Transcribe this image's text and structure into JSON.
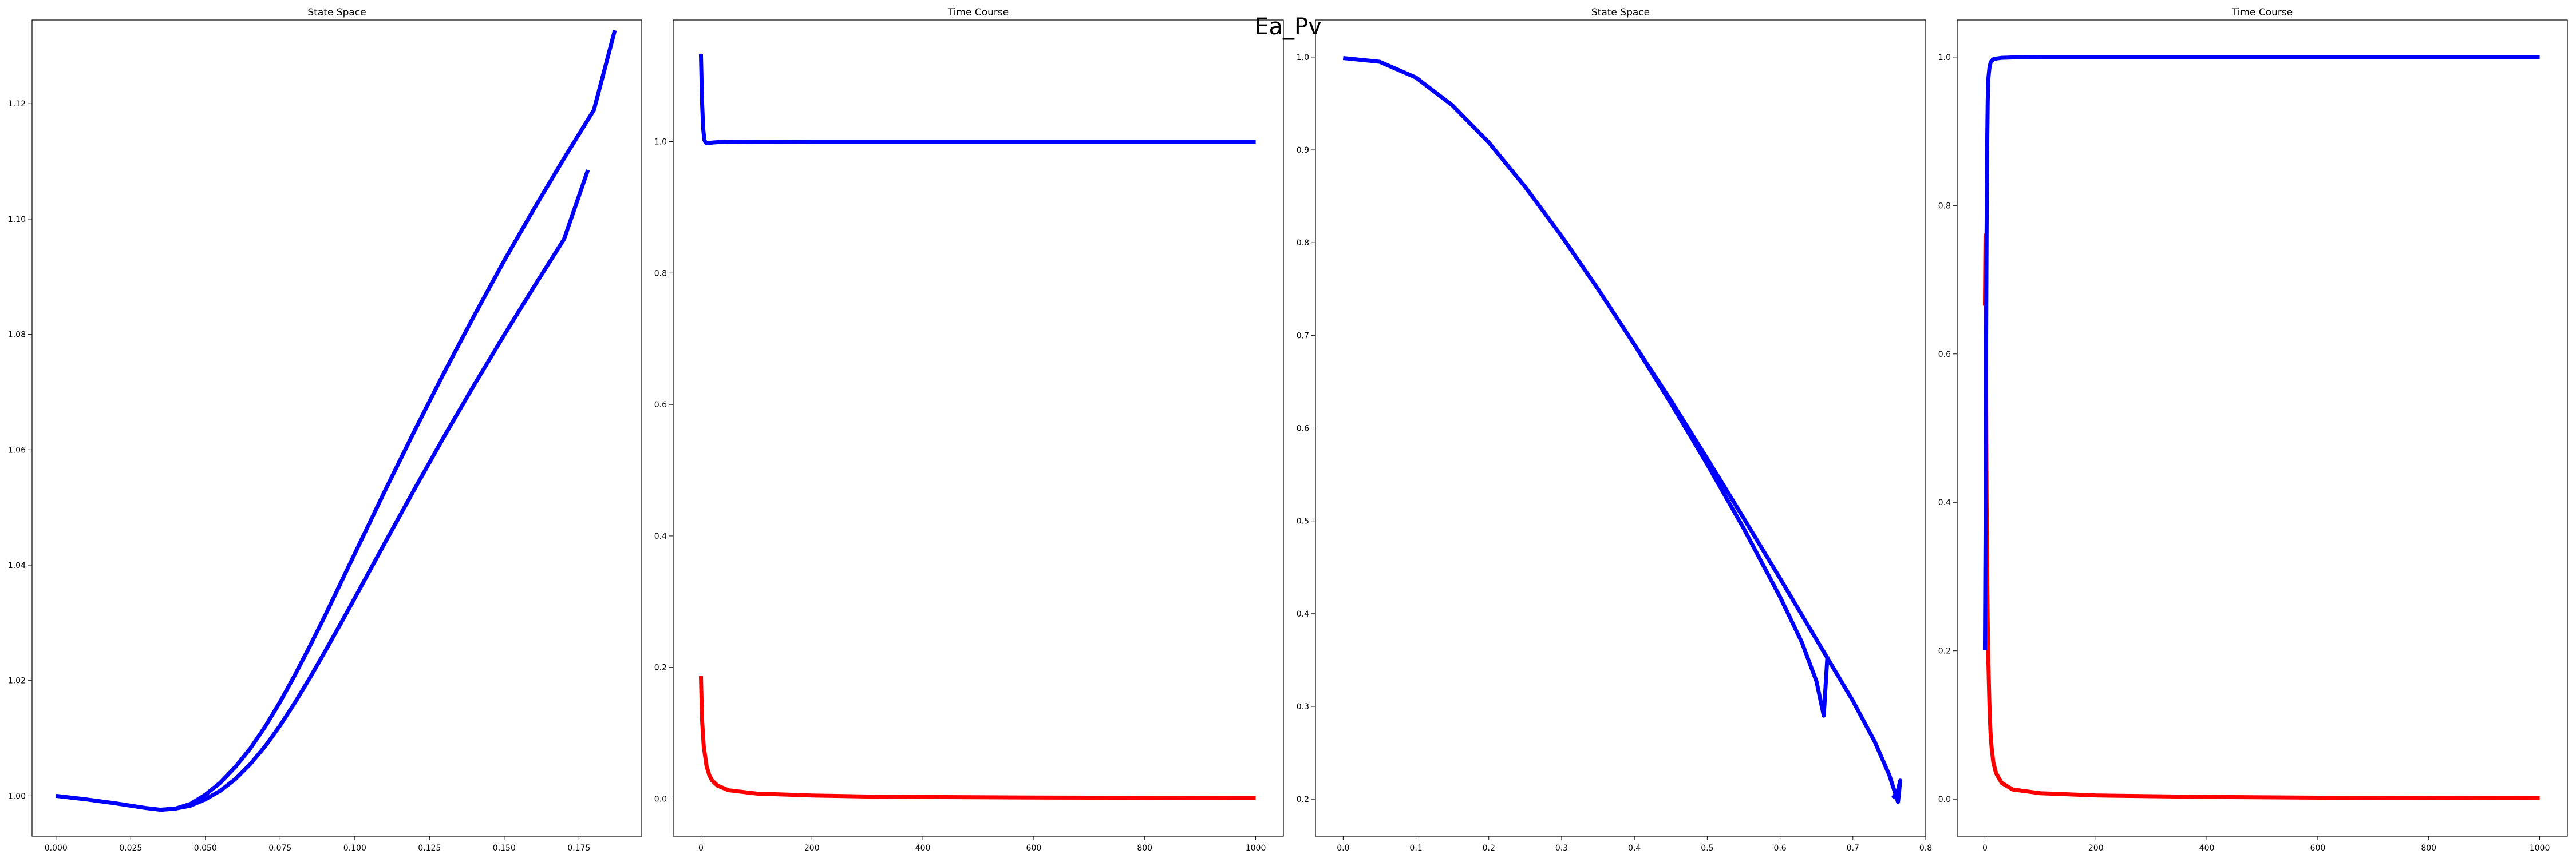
{
  "figure": {
    "suptitle": "Ea_Pv"
  },
  "chart_data": [
    {
      "type": "line",
      "title": "State Space",
      "xlim": [
        -0.008,
        0.196
      ],
      "ylim": [
        0.993,
        1.1345
      ],
      "xticks": [
        0.0,
        0.025,
        0.05,
        0.075,
        0.1,
        0.125,
        0.15,
        0.175
      ],
      "xtick_labels": [
        "0.000",
        "0.025",
        "0.050",
        "0.075",
        "0.100",
        "0.125",
        "0.150",
        "0.175"
      ],
      "yticks": [
        1.0,
        1.02,
        1.04,
        1.06,
        1.08,
        1.1,
        1.12
      ],
      "ytick_labels": [
        "1.00",
        "1.02",
        "1.04",
        "1.06",
        "1.08",
        "1.10",
        "1.12"
      ],
      "series": [
        {
          "color": "#0000ff",
          "x": [
            0.0,
            0.01,
            0.02,
            0.03,
            0.035,
            0.04,
            0.045,
            0.05,
            0.055,
            0.06,
            0.065,
            0.07,
            0.075,
            0.08,
            0.085,
            0.09,
            0.095,
            0.1,
            0.11,
            0.12,
            0.13,
            0.14,
            0.15,
            0.16,
            0.17,
            0.18,
            0.187
          ],
          "y": [
            1.0,
            0.9994,
            0.9987,
            0.9979,
            0.9976,
            0.9978,
            0.9986,
            1.0002,
            1.0023,
            1.005,
            1.0082,
            1.012,
            1.0163,
            1.021,
            1.026,
            1.0312,
            1.0366,
            1.042,
            1.0528,
            1.0633,
            1.0735,
            1.0833,
            1.0928,
            1.1018,
            1.1105,
            1.1189,
            1.1327
          ]
        },
        {
          "color": "#0000ff",
          "x": [
            0.035,
            0.04,
            0.045,
            0.05,
            0.055,
            0.06,
            0.065,
            0.07,
            0.075,
            0.08,
            0.085,
            0.09,
            0.095,
            0.1,
            0.11,
            0.12,
            0.13,
            0.14,
            0.15,
            0.16,
            0.17,
            0.178
          ],
          "y": [
            0.9976,
            0.9978,
            0.9983,
            0.9994,
            1.0009,
            1.0029,
            1.0055,
            1.0086,
            1.0122,
            1.0162,
            1.0205,
            1.025,
            1.0296,
            1.0343,
            1.0438,
            1.0532,
            1.0624,
            1.0713,
            1.0799,
            1.0883,
            1.0965,
            1.1085
          ]
        }
      ]
    },
    {
      "type": "line",
      "title": "Time Course",
      "xlim": [
        -50,
        1050
      ],
      "ylim": [
        -0.057,
        1.185
      ],
      "xticks": [
        0,
        200,
        400,
        600,
        800,
        1000
      ],
      "xtick_labels": [
        "0",
        "200",
        "400",
        "600",
        "800",
        "1000"
      ],
      "yticks": [
        0.0,
        0.2,
        0.4,
        0.6,
        0.8,
        1.0
      ],
      "ytick_labels": [
        "0.0",
        "0.2",
        "0.4",
        "0.6",
        "0.8",
        "1.0"
      ],
      "series": [
        {
          "color": "#0000ff",
          "x": [
            0,
            2,
            4,
            6,
            8,
            10,
            15,
            20,
            30,
            50,
            100,
            200,
            400,
            600,
            800,
            1000
          ],
          "y": [
            1.1327,
            1.06,
            1.02,
            1.003,
            0.999,
            0.9976,
            0.9978,
            0.9985,
            0.9992,
            0.9996,
            0.9998,
            1.0,
            1.0,
            1.0,
            1.0,
            1.0
          ]
        },
        {
          "color": "#ff0000",
          "x": [
            0,
            2,
            5,
            10,
            15,
            20,
            30,
            50,
            100,
            200,
            300,
            400,
            600,
            800,
            1000
          ],
          "y": [
            0.187,
            0.12,
            0.08,
            0.05,
            0.036,
            0.028,
            0.02,
            0.013,
            0.008,
            0.005,
            0.0035,
            0.0028,
            0.002,
            0.0016,
            0.0013
          ]
        }
      ]
    },
    {
      "type": "line",
      "title": "State Space",
      "xlim": [
        -0.038,
        0.8
      ],
      "ylim": [
        0.16,
        1.04
      ],
      "xticks": [
        0.0,
        0.1,
        0.2,
        0.3,
        0.4,
        0.5,
        0.6,
        0.7,
        0.8
      ],
      "xtick_labels": [
        "0.0",
        "0.1",
        "0.2",
        "0.3",
        "0.4",
        "0.5",
        "0.6",
        "0.7",
        "0.8"
      ],
      "yticks": [
        0.2,
        0.3,
        0.4,
        0.5,
        0.6,
        0.7,
        0.8,
        0.9,
        1.0
      ],
      "ytick_labels": [
        "0.2",
        "0.3",
        "0.4",
        "0.5",
        "0.6",
        "0.7",
        "0.8",
        "0.9",
        "1.0"
      ],
      "series": [
        {
          "color": "#0000ff",
          "x": [
            0.0,
            0.05,
            0.1,
            0.15,
            0.2,
            0.25,
            0.3,
            0.35,
            0.4,
            0.45,
            0.5,
            0.55,
            0.6,
            0.63,
            0.65,
            0.66,
            0.665
          ],
          "y": [
            0.999,
            0.995,
            0.978,
            0.948,
            0.908,
            0.86,
            0.807,
            0.75,
            0.69,
            0.627,
            0.561,
            0.492,
            0.418,
            0.369,
            0.327,
            0.29,
            0.354
          ]
        },
        {
          "color": "#0000ff",
          "x": [
            0.4,
            0.45,
            0.5,
            0.55,
            0.6,
            0.65,
            0.7,
            0.73,
            0.75,
            0.762,
            0.765,
            0.762,
            0.755
          ],
          "y": [
            0.69,
            0.63,
            0.567,
            0.503,
            0.438,
            0.372,
            0.306,
            0.262,
            0.226,
            0.197,
            0.22,
            0.21,
            0.201
          ]
        }
      ]
    },
    {
      "type": "line",
      "title": "Time Course",
      "xlim": [
        -50,
        1050
      ],
      "ylim": [
        -0.05,
        1.05
      ],
      "xticks": [
        0,
        200,
        400,
        600,
        800,
        1000
      ],
      "xtick_labels": [
        "0",
        "200",
        "400",
        "600",
        "800",
        "1000"
      ],
      "yticks": [
        0.0,
        0.2,
        0.4,
        0.6,
        0.8,
        1.0
      ],
      "ytick_labels": [
        "0.0",
        "0.2",
        "0.4",
        "0.6",
        "0.8",
        "1.0"
      ],
      "series": [
        {
          "color": "#ff0000",
          "x": [
            0,
            1,
            2,
            3,
            4,
            5,
            6,
            8,
            10,
            12,
            15,
            20,
            30,
            50,
            100,
            200,
            400,
            600,
            800,
            1000
          ],
          "y": [
            0.665,
            0.76,
            0.55,
            0.4,
            0.3,
            0.24,
            0.19,
            0.13,
            0.09,
            0.07,
            0.05,
            0.035,
            0.022,
            0.013,
            0.008,
            0.005,
            0.003,
            0.002,
            0.0016,
            0.0013
          ]
        },
        {
          "color": "#0000ff",
          "x": [
            0,
            1,
            2,
            3,
            4,
            5,
            6,
            8,
            10,
            12,
            15,
            20,
            30,
            50,
            100,
            200,
            400,
            600,
            800,
            1000
          ],
          "y": [
            0.201,
            0.35,
            0.6,
            0.77,
            0.88,
            0.94,
            0.97,
            0.985,
            0.992,
            0.995,
            0.997,
            0.998,
            0.999,
            0.9995,
            1.0,
            1.0,
            1.0,
            1.0,
            1.0,
            1.0
          ]
        }
      ]
    }
  ]
}
